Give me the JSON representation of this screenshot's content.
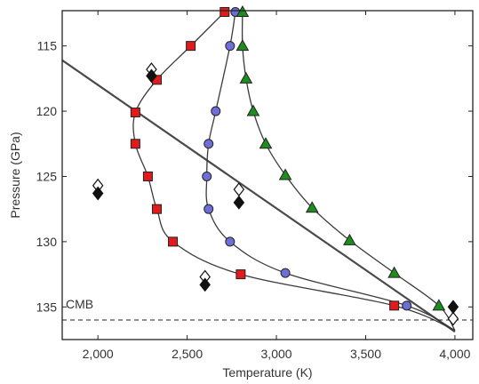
{
  "chart_data": {
    "type": "scatter",
    "xlabel": "Temperature (K)",
    "ylabel": "Pressure (GPa)",
    "xlim": [
      1800,
      4100
    ],
    "ylim": [
      137.5,
      112.3
    ],
    "y_inverted": true,
    "x_ticks": [
      2000,
      2500,
      3000,
      3500,
      4000
    ],
    "x_tick_labels": [
      "2,000",
      "2,500",
      "3,000",
      "3,500",
      "4,000"
    ],
    "y_ticks": [
      115,
      120,
      125,
      130,
      135
    ],
    "y_tick_labels": [
      "115",
      "120",
      "125",
      "130",
      "135"
    ],
    "grid": false,
    "annotations": [
      {
        "text": "CMB",
        "x": 1820,
        "y": 134.9
      }
    ],
    "reference_lines": {
      "cmb_pressure": 136,
      "diagonal_line": {
        "x": [
          1800,
          4000
        ],
        "y": [
          116.1,
          136.9
        ]
      }
    },
    "series": [
      {
        "marker": "square",
        "color": "#e11b1b",
        "x": [
          2710,
          2520,
          2330,
          2210,
          2210,
          2280,
          2330,
          2420,
          2800,
          3660
        ],
        "y": [
          112.4,
          115.0,
          117.6,
          120.1,
          122.5,
          125.0,
          127.5,
          130.0,
          132.5,
          134.9
        ],
        "connect": true
      },
      {
        "marker": "circle",
        "color": "#6e6ed8",
        "x": [
          2770,
          2740,
          2660,
          2620,
          2610,
          2620,
          2740,
          3050,
          3730
        ],
        "y": [
          112.4,
          115.0,
          120.0,
          122.5,
          125.0,
          127.5,
          130.0,
          132.4,
          134.9
        ],
        "connect": true
      },
      {
        "marker": "triangle",
        "color": "#1e8c1e",
        "x": [
          2810,
          2810,
          2830,
          2870,
          2940,
          3050,
          3200,
          3410,
          3660,
          3910
        ],
        "y": [
          112.4,
          115.0,
          117.5,
          120.0,
          122.5,
          124.9,
          127.4,
          129.9,
          132.4,
          134.9
        ],
        "connect": true
      },
      {
        "marker": "diamond-open",
        "color": "#ffffff",
        "x": [
          2300,
          2000,
          2790,
          2600,
          3990
        ],
        "y": [
          116.8,
          125.7,
          126.0,
          132.7,
          135.9
        ],
        "connect": false
      },
      {
        "marker": "diamond-filled",
        "color": "#111111",
        "x": [
          2300,
          2000,
          2790,
          2600,
          3990
        ],
        "y": [
          117.3,
          126.3,
          127.0,
          133.3,
          135.0
        ],
        "connect": false
      }
    ]
  }
}
